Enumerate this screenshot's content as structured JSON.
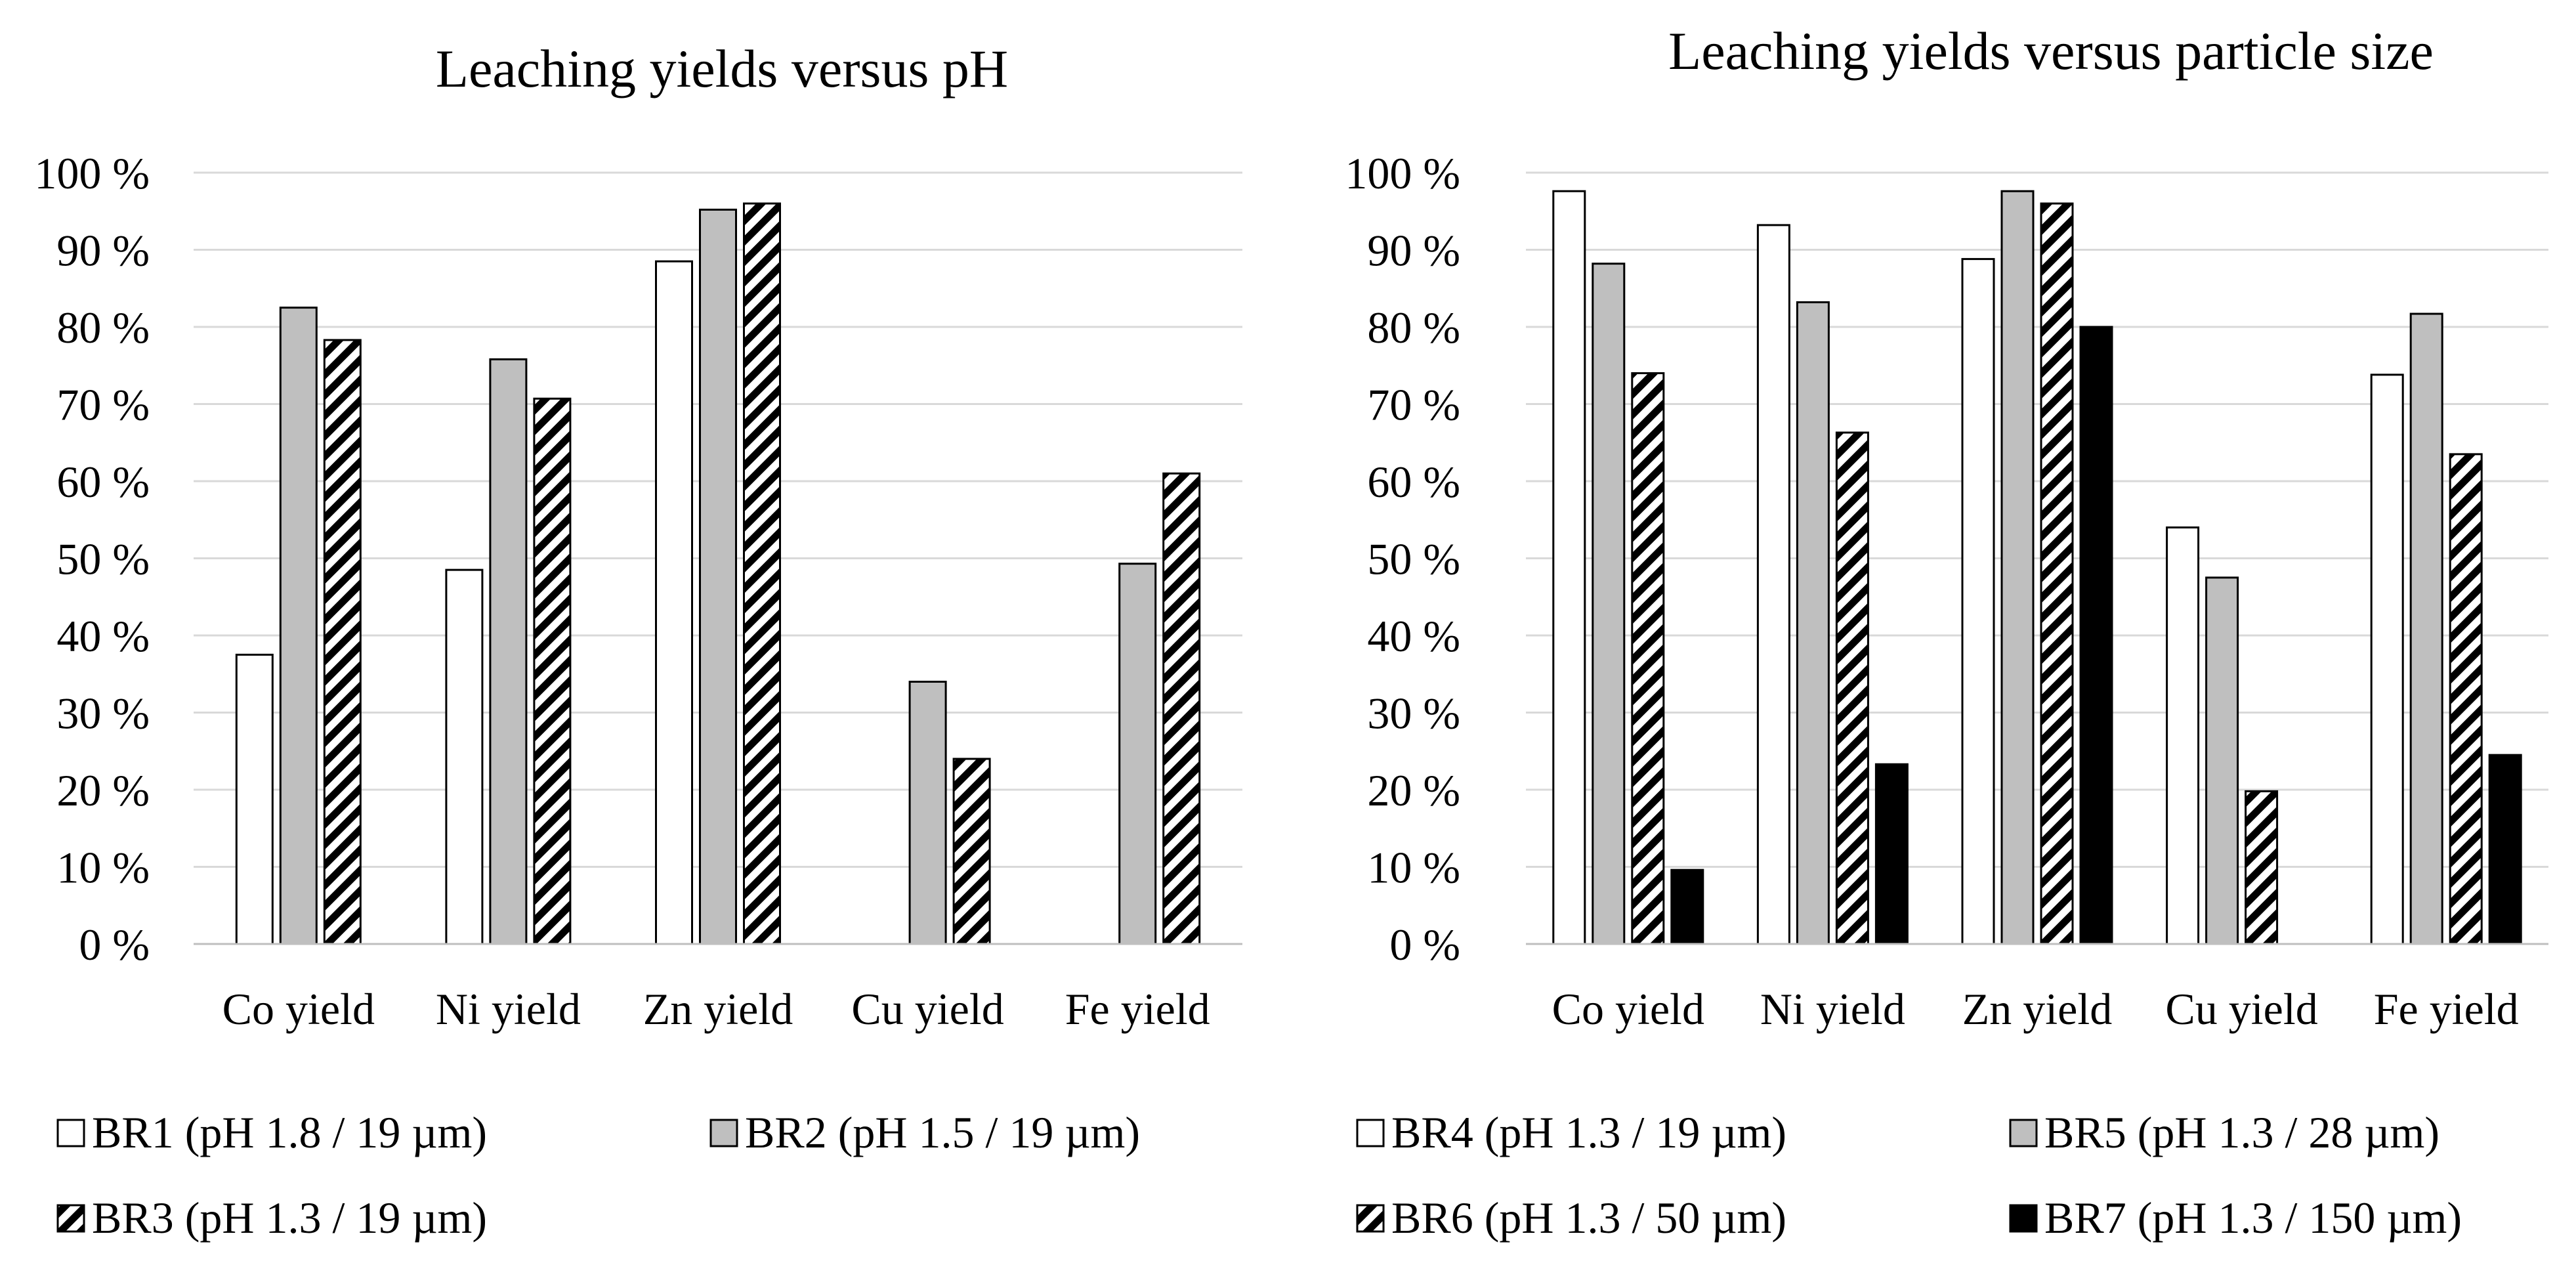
{
  "chart_data": [
    {
      "type": "bar",
      "title": "Leaching yields versus pH",
      "xlabel": "",
      "ylabel": "",
      "ylim": [
        0,
        100
      ],
      "yticks": [
        "0 %",
        "10 %",
        "20 %",
        "30 %",
        "40 %",
        "50 %",
        "60 %",
        "70 %",
        "80 %",
        "90 %",
        "100 %"
      ],
      "grid": true,
      "legend_position": "bottom",
      "categories": [
        "Co yield",
        "Ni yield",
        "Zn yield",
        "Cu yield",
        "Fe yield"
      ],
      "series": [
        {
          "name": "BR1 (pH 1.8 / 19 µm)",
          "pattern": "white",
          "values": [
            37.5,
            48.5,
            88.5,
            0,
            0
          ]
        },
        {
          "name": "BR2 (pH 1.5 / 19 µm)",
          "pattern": "gray",
          "values": [
            82.5,
            75.8,
            95.2,
            34,
            49.3
          ]
        },
        {
          "name": "BR3 (pH 1.3 / 19 µm)",
          "pattern": "hatch",
          "values": [
            78.3,
            70.7,
            96,
            24,
            61
          ]
        }
      ]
    },
    {
      "type": "bar",
      "title": "Leaching yields versus particle size",
      "xlabel": "",
      "ylabel": "",
      "ylim": [
        0,
        100
      ],
      "yticks": [
        "0 %",
        "10 %",
        "20 %",
        "30 %",
        "40 %",
        "50 %",
        "60 %",
        "70 %",
        "80 %",
        "90 %",
        "100 %"
      ],
      "grid": true,
      "legend_position": "bottom",
      "categories": [
        "Co yield",
        "Ni yield",
        "Zn yield",
        "Cu yield",
        "Fe yield"
      ],
      "series": [
        {
          "name": "BR4 (pH 1.3 / 19 µm)",
          "pattern": "white",
          "values": [
            97.6,
            93.2,
            88.8,
            54,
            73.8
          ]
        },
        {
          "name": "BR5 (pH 1.3 / 28 µm)",
          "pattern": "gray",
          "values": [
            88.2,
            83.2,
            97.6,
            47.5,
            81.7
          ]
        },
        {
          "name": "BR6 (pH 1.3 / 50 µm)",
          "pattern": "hatch",
          "values": [
            74,
            66.3,
            96,
            19.8,
            63.5
          ]
        },
        {
          "name": "BR7 (pH 1.3 / 150 µm)",
          "pattern": "black",
          "values": [
            9.6,
            23.3,
            80,
            0,
            24.5
          ]
        }
      ]
    }
  ]
}
